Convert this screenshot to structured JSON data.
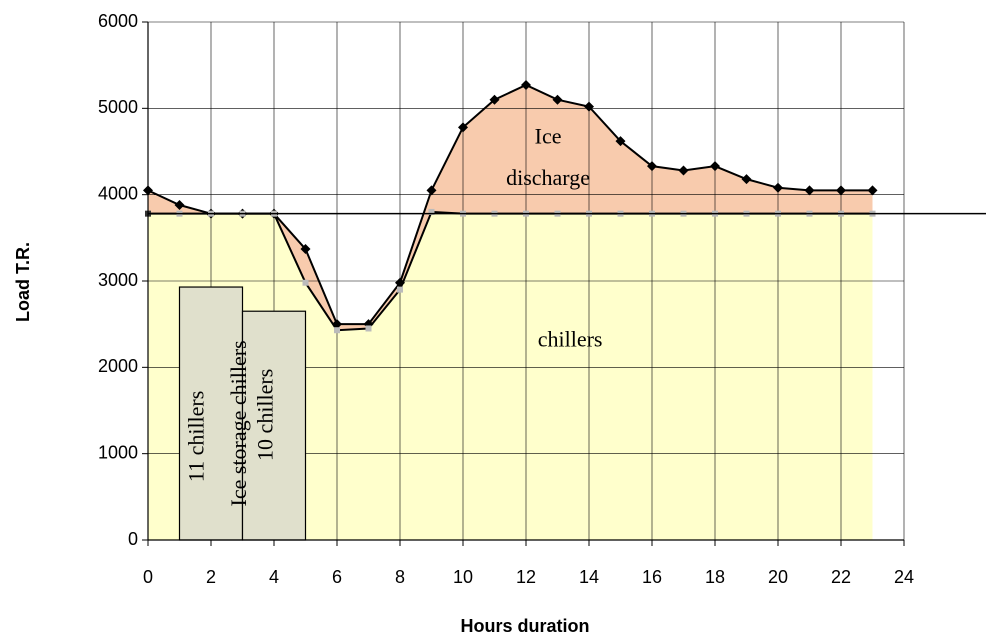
{
  "chart_data": {
    "type": "area-line",
    "x_label": "Hours duration",
    "y_label": "Load T.R.",
    "x": [
      0,
      1,
      2,
      3,
      4,
      5,
      6,
      7,
      8,
      9,
      10,
      11,
      12,
      13,
      14,
      15,
      16,
      17,
      18,
      19,
      20,
      21,
      22,
      23
    ],
    "series": [
      {
        "name": "Load",
        "color": "#f8cbad",
        "values": [
          4050,
          3880,
          3780,
          3780,
          3780,
          3370,
          2500,
          2500,
          2980,
          4050,
          4780,
          5100,
          5270,
          5100,
          5020,
          4620,
          4330,
          4280,
          4330,
          4180,
          4080,
          4050,
          4050,
          4050
        ]
      },
      {
        "name": "Chillers",
        "color": "#ffffcc",
        "values": [
          3780,
          3780,
          3780,
          3780,
          3780,
          2980,
          2430,
          2450,
          2900,
          3800,
          3780,
          3780,
          3780,
          3780,
          3780,
          3780,
          3780,
          3780,
          3780,
          3780,
          3780,
          3780,
          3780,
          3780
        ]
      }
    ],
    "blocks": [
      {
        "x": [
          1,
          3
        ],
        "value": 2930
      },
      {
        "x": [
          3,
          5
        ],
        "value": 2650
      }
    ],
    "hline": 3780,
    "annotations": [
      "Ice",
      "discharge",
      "chillers",
      "11 chillers",
      "Ice storage chillers",
      "10 chillers"
    ],
    "xlim": [
      0,
      24
    ],
    "xticks": [
      0,
      2,
      4,
      6,
      8,
      10,
      12,
      14,
      16,
      18,
      20,
      22,
      24
    ],
    "ylim": [
      0,
      6000
    ],
    "yticks": [
      0,
      1000,
      2000,
      3000,
      4000,
      5000,
      6000
    ],
    "grid": true
  }
}
